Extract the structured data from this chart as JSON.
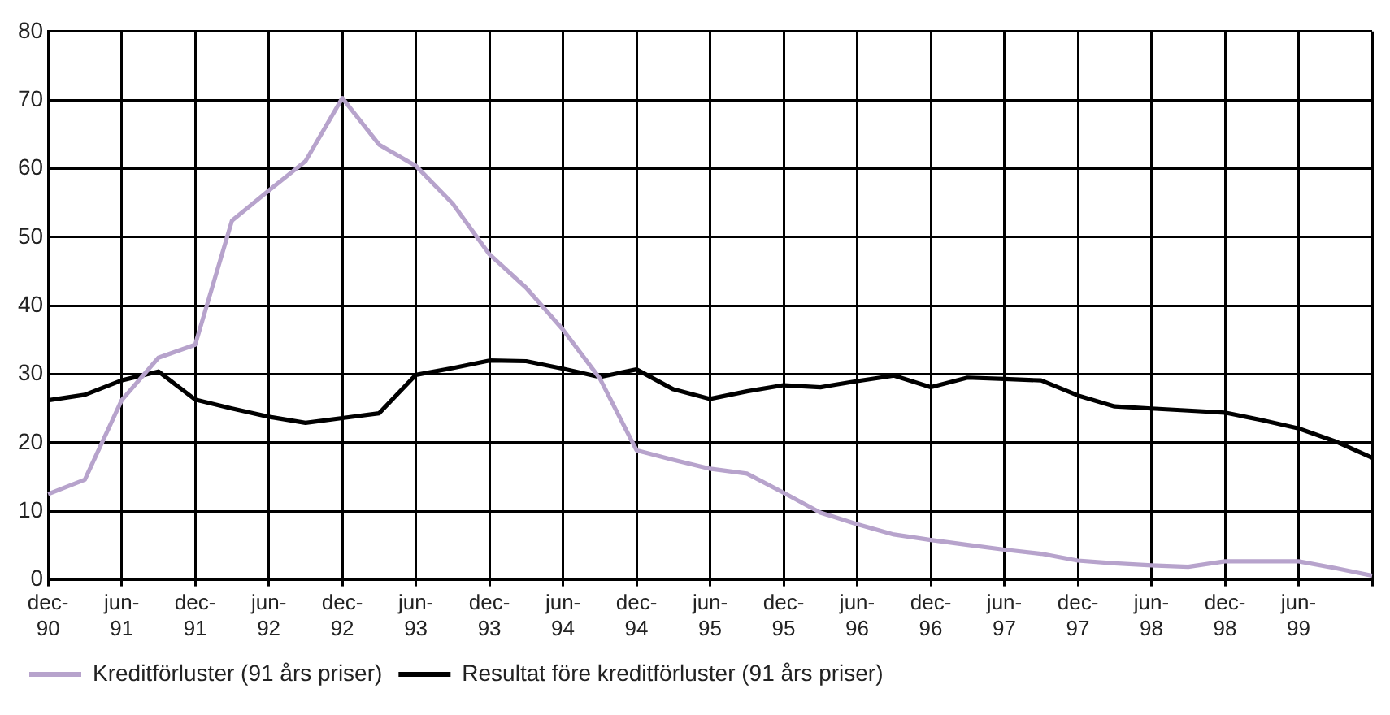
{
  "chart_data": {
    "type": "line",
    "categories": [
      "dec-90",
      null,
      "jun-91",
      null,
      "dec-91",
      null,
      "jun-92",
      null,
      "dec-92",
      null,
      "jun-93",
      null,
      "dec-93",
      null,
      "jun-94",
      null,
      "dec-94",
      null,
      "jun-95",
      null,
      "dec-95",
      null,
      "jun-96",
      null,
      "dec-96",
      null,
      "jun-97",
      null,
      "dec-97",
      null,
      "jun-98",
      null,
      "dec-98",
      null,
      "jun-99",
      null,
      null
    ],
    "ylim": [
      0,
      80
    ],
    "yticks": [
      0,
      10,
      20,
      30,
      40,
      50,
      60,
      70,
      80
    ],
    "grid": true,
    "legend": "bottom",
    "marker": "none",
    "line_style": "solid",
    "series": [
      {
        "name": "Kreditförluster (91 års priser)",
        "color": "#b7a3cc",
        "values": [
          12.5,
          14.6,
          26.2,
          32.4,
          34.3,
          52.4,
          56.8,
          61.1,
          70.3,
          63.5,
          60.4,
          54.9,
          47.5,
          42.6,
          36.5,
          29.4,
          18.9,
          17.5,
          16.2,
          15.5,
          12.7,
          9.8,
          8.1,
          6.6,
          5.8,
          5.1,
          4.4,
          3.8,
          2.8,
          2.4,
          2.1,
          1.9,
          2.7,
          2.7,
          2.7,
          1.7,
          0.6
        ]
      },
      {
        "name": "Resultat före kreditförluster (91 års priser)",
        "color": "#000000",
        "values": [
          26.2,
          27,
          29.1,
          30.4,
          26.3,
          25,
          23.8,
          22.9,
          23.6,
          24.3,
          29.9,
          30.9,
          32,
          31.9,
          30.8,
          29.6,
          30.7,
          27.8,
          26.4,
          27.5,
          28.4,
          28.1,
          29,
          29.8,
          28.1,
          29.5,
          29.3,
          29.1,
          26.9,
          25.3,
          25,
          24.7,
          24.4,
          23.3,
          22.1,
          20.2,
          17.8
        ]
      }
    ]
  }
}
